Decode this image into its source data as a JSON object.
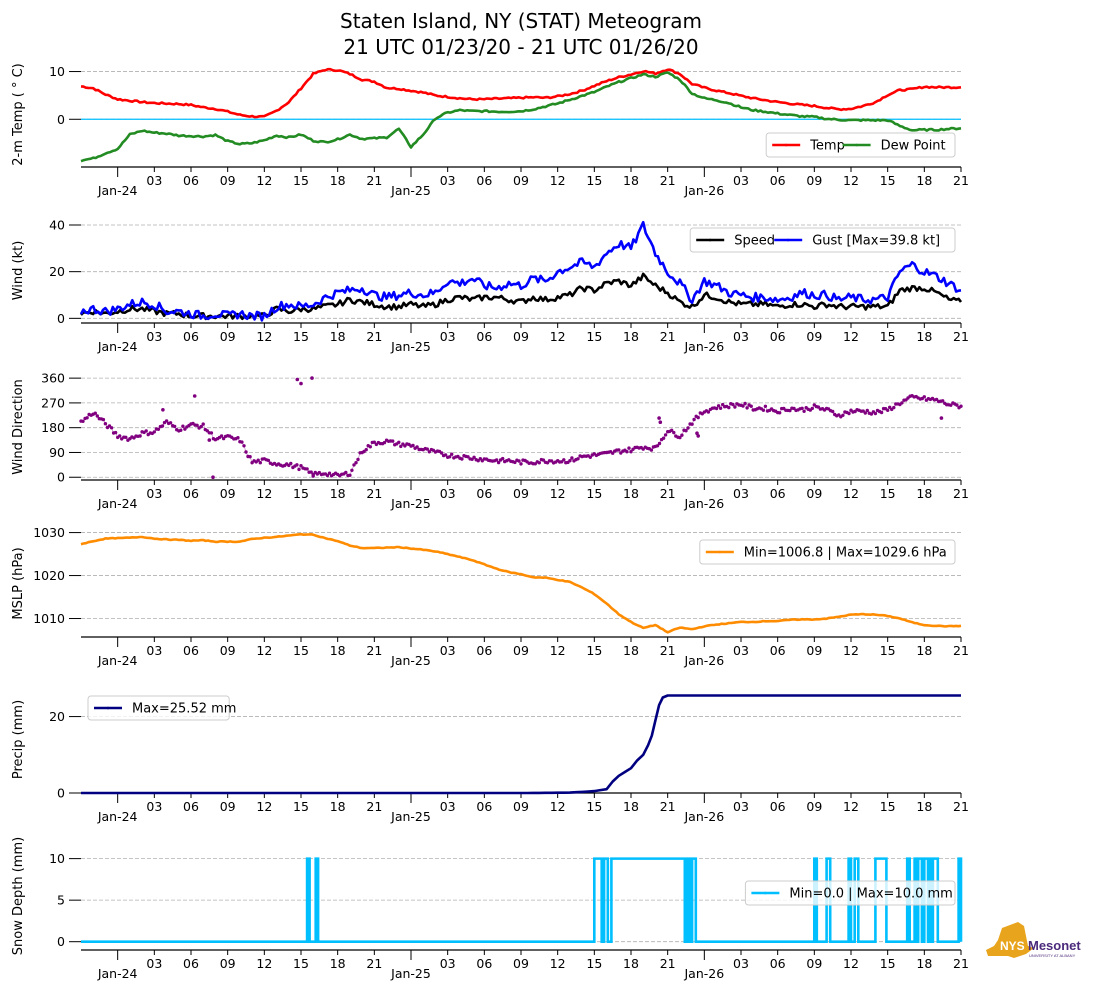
{
  "title_line1": "Staten Island, NY (STAT) Meteogram",
  "title_line2": "21 UTC 01/23/20 - 21 UTC 01/26/20",
  "logo": {
    "name": "nys-mesonet-logo",
    "text_main": "NYS",
    "text_brand": "Mesonet",
    "text_sub": "UNIVERSITY AT ALBANY",
    "colors": {
      "state": "#e8a41c",
      "brand": "#4b2a7b"
    }
  },
  "x_axis": {
    "start": "2020-01-23T21:00Z",
    "end": "2020-01-26T21:00Z",
    "hours_total": 72,
    "ticks": [
      {
        "h": 3,
        "label": "Jan-24",
        "major": true
      },
      {
        "h": 6,
        "label": "03"
      },
      {
        "h": 9,
        "label": "06"
      },
      {
        "h": 12,
        "label": "09"
      },
      {
        "h": 15,
        "label": "12"
      },
      {
        "h": 18,
        "label": "15"
      },
      {
        "h": 21,
        "label": "18"
      },
      {
        "h": 24,
        "label": "21"
      },
      {
        "h": 27,
        "label": "Jan-25",
        "major": true
      },
      {
        "h": 30,
        "label": "03"
      },
      {
        "h": 33,
        "label": "06"
      },
      {
        "h": 36,
        "label": "09"
      },
      {
        "h": 39,
        "label": "12"
      },
      {
        "h": 42,
        "label": "15"
      },
      {
        "h": 45,
        "label": "18"
      },
      {
        "h": 48,
        "label": "21"
      },
      {
        "h": 51,
        "label": "Jan-26",
        "major": true
      },
      {
        "h": 54,
        "label": "03"
      },
      {
        "h": 57,
        "label": "06"
      },
      {
        "h": 60,
        "label": "09"
      },
      {
        "h": 63,
        "label": "12"
      },
      {
        "h": 66,
        "label": "15"
      },
      {
        "h": 69,
        "label": "18"
      },
      {
        "h": 72,
        "label": "21"
      }
    ]
  },
  "chart_data": [
    {
      "type": "line",
      "name": "temperature",
      "ylabel": "2-m Temp ( ° C)",
      "ylim": [
        -10,
        12
      ],
      "yticks": [
        0,
        10
      ],
      "grid": true,
      "hline": {
        "y": 0,
        "color": "#00bfff"
      },
      "legend": {
        "placement": "lower-right",
        "ncol": 2
      },
      "x_hours": [
        0,
        1,
        2,
        3,
        4,
        5,
        6,
        7,
        8,
        9,
        10,
        11,
        12,
        13,
        14,
        15,
        16,
        17,
        18,
        19,
        20,
        21,
        22,
        23,
        24,
        25,
        26,
        27,
        28,
        29,
        30,
        31,
        32,
        33,
        34,
        35,
        36,
        37,
        38,
        39,
        40,
        41,
        42,
        43,
        44,
        45,
        46,
        47,
        48,
        49,
        50,
        51,
        52,
        53,
        54,
        55,
        56,
        57,
        58,
        59,
        60,
        61,
        62,
        63,
        64,
        65,
        66,
        67,
        68,
        69,
        70,
        71,
        72
      ],
      "series": [
        {
          "name": "Temp",
          "color": "#ff0000",
          "values": [
            6.9,
            6.5,
            5.2,
            4.2,
            3.9,
            3.6,
            3.4,
            3.3,
            3.2,
            3.0,
            2.5,
            2.2,
            1.6,
            0.9,
            0.6,
            0.5,
            1.8,
            3.6,
            6.5,
            9.5,
            10.4,
            10.3,
            9.5,
            8.3,
            7.9,
            6.6,
            6.4,
            6.0,
            5.6,
            5.0,
            4.7,
            4.4,
            4.2,
            4.2,
            4.3,
            4.4,
            4.5,
            4.6,
            4.5,
            4.8,
            5.3,
            6.0,
            7.0,
            8.0,
            8.8,
            9.4,
            10.1,
            9.6,
            10.5,
            9.5,
            7.4,
            6.6,
            6.0,
            5.5,
            4.9,
            4.4,
            4.0,
            3.6,
            3.3,
            3.0,
            2.8,
            2.4,
            2.1,
            2.2,
            2.8,
            3.6,
            5.1,
            6.1,
            6.3,
            6.8,
            6.7,
            6.7,
            6.7
          ]
        },
        {
          "name": "Dew Point",
          "color": "#228b22",
          "values": [
            -8.6,
            -8.2,
            -7.1,
            -6.2,
            -3.2,
            -2.4,
            -2.8,
            -3.0,
            -3.4,
            -3.5,
            -3.6,
            -3.3,
            -4.6,
            -5.2,
            -5.0,
            -4.4,
            -3.4,
            -3.8,
            -3.2,
            -4.5,
            -4.8,
            -4.2,
            -3.2,
            -4.1,
            -4.0,
            -3.8,
            -2.0,
            -5.8,
            -3.2,
            0.2,
            1.4,
            1.9,
            1.7,
            1.7,
            1.6,
            1.6,
            1.7,
            2.1,
            2.7,
            3.3,
            4.1,
            4.9,
            5.7,
            6.8,
            7.8,
            8.6,
            9.4,
            8.9,
            9.8,
            8.3,
            5.4,
            4.4,
            4.0,
            3.4,
            2.5,
            1.9,
            1.6,
            1.2,
            0.9,
            0.6,
            0.5,
            0.1,
            -0.1,
            -0.2,
            -0.2,
            -0.2,
            -0.2,
            -1.4,
            -2.3,
            -2.2,
            -2.2,
            -2.0,
            -1.9
          ]
        }
      ],
      "legend_labels": [
        "Temp",
        "Dew Point"
      ]
    },
    {
      "type": "line",
      "name": "wind",
      "ylabel": "Wind (kt)",
      "ylim": [
        -2,
        43
      ],
      "yticks": [
        0,
        20,
        40
      ],
      "grid": true,
      "legend": {
        "placement": "upper-right",
        "ncol": 2
      },
      "x_hours": [
        0,
        1,
        2,
        3,
        4,
        5,
        6,
        7,
        8,
        9,
        10,
        11,
        12,
        13,
        14,
        15,
        16,
        17,
        18,
        19,
        20,
        21,
        22,
        23,
        24,
        25,
        26,
        27,
        28,
        29,
        30,
        31,
        32,
        33,
        34,
        35,
        36,
        37,
        38,
        39,
        40,
        41,
        42,
        43,
        44,
        45,
        46,
        47,
        48,
        49,
        50,
        51,
        52,
        53,
        54,
        55,
        56,
        57,
        58,
        59,
        60,
        61,
        62,
        63,
        64,
        65,
        66,
        67,
        68,
        69,
        70,
        71,
        72
      ],
      "series": [
        {
          "name": "Speed",
          "color": "#000000",
          "values": [
            2,
            3,
            2,
            3,
            4,
            4,
            3,
            2,
            2,
            1,
            1,
            1,
            1,
            1,
            1,
            1,
            4,
            3,
            4,
            4,
            5,
            6,
            8,
            7,
            6,
            5,
            5,
            6,
            5,
            6,
            8,
            9,
            8,
            9,
            9,
            8,
            7,
            9,
            8,
            9,
            10,
            13,
            12,
            15,
            16,
            14,
            18,
            14,
            11,
            7,
            5,
            10,
            9,
            7,
            6,
            6,
            6,
            5,
            6,
            6,
            5,
            6,
            5,
            5,
            5,
            5,
            5,
            12,
            13,
            13,
            11,
            8,
            7
          ]
        },
        {
          "name": "Gust [Max=39.8 kt]",
          "color": "#0000ff",
          "values": [
            3,
            4,
            3,
            4,
            6,
            7,
            6,
            3,
            3,
            2,
            1,
            2,
            1,
            2,
            1,
            1,
            5,
            6,
            5,
            6,
            9,
            11,
            12,
            13,
            10,
            9,
            10,
            11,
            10,
            11,
            16,
            15,
            17,
            14,
            13,
            15,
            14,
            17,
            16,
            20,
            22,
            24,
            22,
            28,
            32,
            30,
            39.8,
            28,
            20,
            15,
            8,
            16,
            14,
            11,
            10,
            9,
            9,
            8,
            9,
            11,
            10,
            10,
            8,
            9,
            8,
            8,
            9,
            20,
            23,
            20,
            18,
            15,
            12
          ]
        }
      ],
      "legend_labels": [
        "Speed",
        "Gust [Max=39.8 kt]"
      ]
    },
    {
      "type": "scatter",
      "name": "wind_direction",
      "ylabel": "Wind Direction",
      "ylim": [
        -10,
        375
      ],
      "yticks": [
        0,
        90,
        180,
        270,
        360
      ],
      "grid": true,
      "x_hours": [
        0,
        1,
        2,
        3,
        4,
        5,
        6,
        7,
        8,
        9,
        10,
        11,
        12,
        13,
        14,
        15,
        16,
        17,
        18,
        19,
        20,
        21,
        22,
        23,
        24,
        25,
        26,
        27,
        28,
        29,
        30,
        31,
        32,
        33,
        34,
        35,
        36,
        37,
        38,
        39,
        40,
        41,
        42,
        43,
        44,
        45,
        46,
        47,
        48,
        49,
        50,
        51,
        52,
        53,
        54,
        55,
        56,
        57,
        58,
        59,
        60,
        61,
        62,
        63,
        64,
        65,
        66,
        67,
        68,
        69,
        70,
        71,
        72
      ],
      "series": [
        {
          "name": "Wind Direction",
          "color": "#800080",
          "values": [
            200,
            235,
            195,
            150,
            140,
            160,
            165,
            200,
            175,
            190,
            185,
            140,
            145,
            135,
            55,
            60,
            50,
            45,
            35,
            10,
            15,
            5,
            15,
            95,
            125,
            130,
            120,
            115,
            100,
            90,
            80,
            75,
            70,
            65,
            60,
            60,
            55,
            55,
            60,
            60,
            60,
            75,
            80,
            85,
            95,
            100,
            110,
            105,
            170,
            150,
            200,
            240,
            255,
            260,
            265,
            250,
            250,
            240,
            250,
            245,
            255,
            245,
            225,
            240,
            240,
            235,
            245,
            270,
            290,
            285,
            280,
            265,
            258
          ]
        },
        {
          "name": "outliers",
          "color": "#800080",
          "points": [
            [
              6.7,
              245
            ],
            [
              9.3,
              295
            ],
            [
              10.5,
              135
            ],
            [
              10.8,
              0
            ],
            [
              17.7,
              355
            ],
            [
              18.0,
              340
            ],
            [
              18.9,
              360
            ],
            [
              19.0,
              10
            ],
            [
              47.3,
              215
            ],
            [
              47.4,
              200
            ],
            [
              50.4,
              160
            ],
            [
              50.5,
              150
            ],
            [
              70.4,
              215
            ]
          ]
        }
      ]
    },
    {
      "type": "line",
      "name": "mslp",
      "ylabel": "MSLP (hPa)",
      "ylim": [
        1005.7,
        1030.6
      ],
      "yticks": [
        1010,
        1020,
        1030
      ],
      "grid": true,
      "legend": {
        "placement": "upper-right"
      },
      "x_hours": [
        0,
        1,
        2,
        3,
        4,
        5,
        6,
        7,
        8,
        9,
        10,
        11,
        12,
        13,
        14,
        15,
        16,
        17,
        18,
        19,
        20,
        21,
        22,
        23,
        24,
        25,
        26,
        27,
        28,
        29,
        30,
        31,
        32,
        33,
        34,
        35,
        36,
        37,
        38,
        39,
        40,
        41,
        42,
        43,
        44,
        45,
        46,
        47,
        48,
        49,
        50,
        51,
        52,
        53,
        54,
        55,
        56,
        57,
        58,
        59,
        60,
        61,
        62,
        63,
        64,
        65,
        66,
        67,
        68,
        69,
        70,
        71,
        72
      ],
      "series": [
        {
          "name": "Min=1006.8 | Max=1029.6 hPa",
          "color": "#ff8c00",
          "values": [
            1027.3,
            1028.0,
            1028.6,
            1028.7,
            1028.8,
            1029.0,
            1028.6,
            1028.4,
            1028.3,
            1028.1,
            1028.2,
            1027.9,
            1027.9,
            1027.9,
            1028.5,
            1028.8,
            1029.0,
            1029.3,
            1029.6,
            1029.5,
            1028.7,
            1028.0,
            1027.0,
            1026.4,
            1026.4,
            1026.5,
            1026.6,
            1026.3,
            1026.0,
            1025.6,
            1025.0,
            1024.3,
            1023.6,
            1022.6,
            1021.6,
            1020.8,
            1020.3,
            1019.6,
            1019.5,
            1019.0,
            1018.5,
            1017.2,
            1015.7,
            1013.5,
            1011.0,
            1009.2,
            1007.8,
            1008.5,
            1006.8,
            1007.9,
            1007.5,
            1008.2,
            1008.6,
            1008.9,
            1009.2,
            1009.2,
            1009.4,
            1009.4,
            1009.7,
            1009.8,
            1009.8,
            1010.0,
            1010.4,
            1010.9,
            1011.0,
            1010.9,
            1010.6,
            1010.0,
            1009.1,
            1008.5,
            1008.3,
            1008.2,
            1008.3
          ]
        }
      ],
      "legend_labels": [
        "Min=1006.8 | Max=1029.6 hPa"
      ]
    },
    {
      "type": "line",
      "name": "precip",
      "ylabel": "Precip (mm)",
      "ylim": [
        0,
        28
      ],
      "yticks": [
        0,
        20
      ],
      "grid": true,
      "legend": {
        "placement": "upper-left"
      },
      "x_hours": [
        0,
        30,
        36,
        40,
        41,
        42,
        43,
        43.5,
        44,
        45,
        45.5,
        46,
        46.4,
        46.7,
        47,
        47.3,
        47.6,
        48,
        72
      ],
      "series": [
        {
          "name": "Max=25.52 mm",
          "color": "#000080",
          "values": [
            0,
            0,
            0,
            0.1,
            0.3,
            0.5,
            1.0,
            3.0,
            4.5,
            6.5,
            8.5,
            10.0,
            12.5,
            15.0,
            19.0,
            23.0,
            25.0,
            25.52,
            25.52
          ]
        }
      ],
      "legend_labels": [
        "Max=25.52 mm"
      ]
    },
    {
      "type": "line",
      "name": "snow_depth",
      "ylabel": "Snow Depth (mm)",
      "ylim": [
        -1,
        12
      ],
      "yticks": [
        0,
        5,
        10
      ],
      "grid": true,
      "legend": {
        "placement": "center-right"
      },
      "pulses_hours": [
        [
          18.5,
          18.7
        ],
        [
          19.2,
          19.4
        ],
        [
          42.0,
          42.6
        ],
        [
          42.8,
          43.1
        ],
        [
          43.4,
          49.4
        ],
        [
          49.6,
          49.8
        ],
        [
          50.0,
          50.3
        ],
        [
          60.0,
          60.2
        ],
        [
          61.0,
          61.3
        ],
        [
          62.8,
          63.0
        ],
        [
          63.3,
          63.6
        ],
        [
          65.0,
          65.9
        ],
        [
          67.6,
          67.8
        ],
        [
          68.2,
          68.4
        ],
        [
          68.5,
          68.8
        ],
        [
          69.0,
          69.3
        ],
        [
          69.4,
          69.6
        ],
        [
          69.7,
          70.1
        ],
        [
          71.8,
          72.0
        ]
      ],
      "series": [
        {
          "name": "Min=0.0 | Max=10.0 mm",
          "color": "#00bfff",
          "min": 0.0,
          "max": 10.0
        }
      ],
      "legend_labels": [
        "Min=0.0 | Max=10.0 mm"
      ]
    }
  ]
}
